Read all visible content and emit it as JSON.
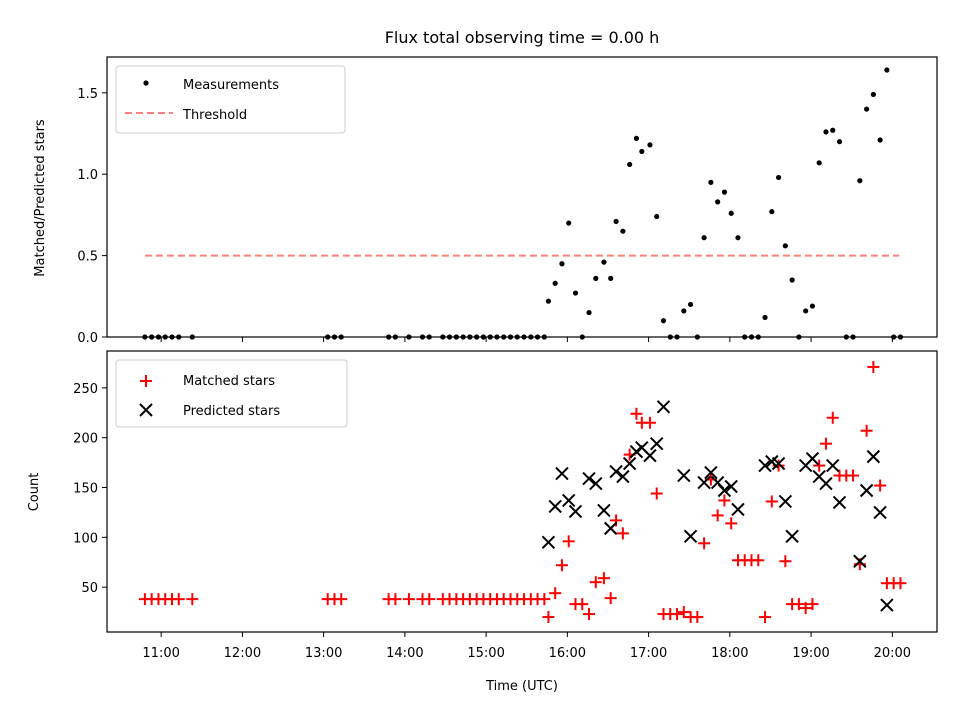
{
  "chart_data": [
    {
      "type": "scatter",
      "title": "Flux total observing time = 0.00 h",
      "xlabel": "",
      "ylabel": "Matched/Predicted stars",
      "ylim": [
        0,
        1.72
      ],
      "yticks": [
        "0.0",
        "0.5",
        "1.0",
        "1.5"
      ],
      "legend": {
        "position": "top-left",
        "entries": [
          "Measurements",
          "Threshold"
        ]
      },
      "threshold": {
        "name": "Threshold",
        "value": 0.5,
        "x_start": "10:48",
        "x_end": "20:05",
        "color": "#ff7f7f"
      },
      "series": [
        {
          "name": "Measurements",
          "color": "#000000",
          "marker": "dot",
          "points": [
            [
              "10:48",
              0
            ],
            [
              "10:53",
              0
            ],
            [
              "10:58",
              0
            ],
            [
              "11:03",
              0
            ],
            [
              "11:08",
              0
            ],
            [
              "11:13",
              0
            ],
            [
              "11:23",
              0
            ],
            [
              "13:03",
              0
            ],
            [
              "13:08",
              0
            ],
            [
              "13:13",
              0
            ],
            [
              "13:48",
              0
            ],
            [
              "13:53",
              0
            ],
            [
              "14:03",
              0
            ],
            [
              "14:13",
              0
            ],
            [
              "14:18",
              0
            ],
            [
              "14:28",
              0
            ],
            [
              "14:33",
              0
            ],
            [
              "14:38",
              0
            ],
            [
              "14:43",
              0
            ],
            [
              "14:48",
              0
            ],
            [
              "14:53",
              0
            ],
            [
              "14:58",
              0
            ],
            [
              "15:03",
              0
            ],
            [
              "15:08",
              0
            ],
            [
              "15:13",
              0
            ],
            [
              "15:18",
              0
            ],
            [
              "15:23",
              0
            ],
            [
              "15:28",
              0
            ],
            [
              "15:33",
              0
            ],
            [
              "15:38",
              0
            ],
            [
              "15:43",
              0
            ],
            [
              "15:46",
              0.22
            ],
            [
              "15:51",
              0.33
            ],
            [
              "15:56",
              0.45
            ],
            [
              "16:01",
              0.7
            ],
            [
              "16:06",
              0.27
            ],
            [
              "16:11",
              0.0
            ],
            [
              "16:16",
              0.15
            ],
            [
              "16:21",
              0.36
            ],
            [
              "16:27",
              0.46
            ],
            [
              "16:32",
              0.36
            ],
            [
              "16:36",
              0.71
            ],
            [
              "16:41",
              0.65
            ],
            [
              "16:46",
              1.06
            ],
            [
              "16:51",
              1.22
            ],
            [
              "16:55",
              1.14
            ],
            [
              "17:01",
              1.18
            ],
            [
              "17:06",
              0.74
            ],
            [
              "17:11",
              0.1
            ],
            [
              "17:16",
              0.0
            ],
            [
              "17:21",
              0.0
            ],
            [
              "17:26",
              0.16
            ],
            [
              "17:31",
              0.2
            ],
            [
              "17:36",
              0.0
            ],
            [
              "17:41",
              0.61
            ],
            [
              "17:46",
              0.95
            ],
            [
              "17:51",
              0.83
            ],
            [
              "17:56",
              0.89
            ],
            [
              "18:01",
              0.76
            ],
            [
              "18:06",
              0.61
            ],
            [
              "18:11",
              0.0
            ],
            [
              "18:16",
              0.0
            ],
            [
              "18:21",
              0.0
            ],
            [
              "18:26",
              0.12
            ],
            [
              "18:31",
              0.77
            ],
            [
              "18:36",
              0.98
            ],
            [
              "18:41",
              0.56
            ],
            [
              "18:46",
              0.35
            ],
            [
              "18:51",
              0.0
            ],
            [
              "18:56",
              0.16
            ],
            [
              "19:01",
              0.19
            ],
            [
              "19:06",
              1.07
            ],
            [
              "19:11",
              1.26
            ],
            [
              "19:16",
              1.27
            ],
            [
              "19:21",
              1.2
            ],
            [
              "19:26",
              0.0
            ],
            [
              "19:31",
              0.0
            ],
            [
              "19:36",
              0.96
            ],
            [
              "19:41",
              1.4
            ],
            [
              "19:46",
              1.49
            ],
            [
              "19:51",
              1.21
            ],
            [
              "19:56",
              1.64
            ],
            [
              "20:01",
              0.0
            ],
            [
              "20:06",
              0.0
            ]
          ]
        }
      ]
    },
    {
      "type": "scatter",
      "title": "",
      "xlabel": "Time (UTC)",
      "ylabel": "Count",
      "ylim": [
        5,
        287
      ],
      "yticks": [
        "50",
        "100",
        "150",
        "200",
        "250"
      ],
      "xticks": [
        "11:00",
        "12:00",
        "13:00",
        "14:00",
        "15:00",
        "16:00",
        "17:00",
        "18:00",
        "19:00",
        "20:00"
      ],
      "xlim": [
        "10:20",
        "20:33"
      ],
      "legend": {
        "position": "top-left",
        "entries": [
          "Matched stars",
          "Predicted stars"
        ]
      },
      "series": [
        {
          "name": "Matched stars",
          "color": "#ff0000",
          "marker": "plus",
          "points": [
            [
              "10:48",
              38
            ],
            [
              "10:53",
              38
            ],
            [
              "10:58",
              38
            ],
            [
              "11:03",
              38
            ],
            [
              "11:08",
              38
            ],
            [
              "11:13",
              38
            ],
            [
              "11:23",
              38
            ],
            [
              "13:03",
              38
            ],
            [
              "13:08",
              38
            ],
            [
              "13:13",
              38
            ],
            [
              "13:48",
              38
            ],
            [
              "13:53",
              38
            ],
            [
              "14:03",
              38
            ],
            [
              "14:13",
              38
            ],
            [
              "14:18",
              38
            ],
            [
              "14:28",
              38
            ],
            [
              "14:33",
              38
            ],
            [
              "14:38",
              38
            ],
            [
              "14:43",
              38
            ],
            [
              "14:48",
              38
            ],
            [
              "14:53",
              38
            ],
            [
              "14:58",
              38
            ],
            [
              "15:03",
              38
            ],
            [
              "15:08",
              38
            ],
            [
              "15:13",
              38
            ],
            [
              "15:18",
              38
            ],
            [
              "15:23",
              38
            ],
            [
              "15:28",
              38
            ],
            [
              "15:33",
              38
            ],
            [
              "15:38",
              38
            ],
            [
              "15:43",
              38
            ],
            [
              "15:46",
              20
            ],
            [
              "15:51",
              44
            ],
            [
              "15:56",
              72
            ],
            [
              "16:01",
              96
            ],
            [
              "16:06",
              33
            ],
            [
              "16:11",
              33
            ],
            [
              "16:16",
              23
            ],
            [
              "16:21",
              55
            ],
            [
              "16:27",
              59
            ],
            [
              "16:32",
              39
            ],
            [
              "16:36",
              117
            ],
            [
              "16:41",
              104
            ],
            [
              "16:46",
              183
            ],
            [
              "16:51",
              224
            ],
            [
              "16:55",
              215
            ],
            [
              "17:01",
              215
            ],
            [
              "17:06",
              144
            ],
            [
              "17:11",
              23
            ],
            [
              "17:16",
              23
            ],
            [
              "17:21",
              23
            ],
            [
              "17:26",
              25
            ],
            [
              "17:31",
              20
            ],
            [
              "17:36",
              20
            ],
            [
              "17:41",
              94
            ],
            [
              "17:46",
              158
            ],
            [
              "17:51",
              122
            ],
            [
              "17:56",
              137
            ],
            [
              "18:01",
              114
            ],
            [
              "18:06",
              77
            ],
            [
              "18:11",
              77
            ],
            [
              "18:16",
              77
            ],
            [
              "18:21",
              77
            ],
            [
              "18:26",
              20
            ],
            [
              "18:31",
              136
            ],
            [
              "18:36",
              172
            ],
            [
              "18:41",
              76
            ],
            [
              "18:46",
              33
            ],
            [
              "18:51",
              33
            ],
            [
              "18:56",
              29
            ],
            [
              "19:01",
              33
            ],
            [
              "19:06",
              172
            ],
            [
              "19:11",
              194
            ],
            [
              "19:16",
              220
            ],
            [
              "19:21",
              162
            ],
            [
              "19:26",
              162
            ],
            [
              "19:31",
              162
            ],
            [
              "19:36",
              73
            ],
            [
              "19:41",
              207
            ],
            [
              "19:46",
              271
            ],
            [
              "19:51",
              152
            ],
            [
              "19:56",
              54
            ],
            [
              "20:01",
              54
            ],
            [
              "20:06",
              54
            ]
          ]
        },
        {
          "name": "Predicted stars",
          "color": "#000000",
          "marker": "x",
          "points": [
            [
              "15:46",
              95
            ],
            [
              "15:51",
              131
            ],
            [
              "15:56",
              164
            ],
            [
              "16:01",
              137
            ],
            [
              "16:06",
              126
            ],
            [
              "16:16",
              159
            ],
            [
              "16:21",
              154
            ],
            [
              "16:27",
              127
            ],
            [
              "16:32",
              109
            ],
            [
              "16:36",
              166
            ],
            [
              "16:41",
              161
            ],
            [
              "16:46",
              174
            ],
            [
              "16:51",
              186
            ],
            [
              "16:55",
              190
            ],
            [
              "17:01",
              182
            ],
            [
              "17:06",
              194
            ],
            [
              "17:11",
              231
            ],
            [
              "17:26",
              162
            ],
            [
              "17:31",
              101
            ],
            [
              "17:41",
              155
            ],
            [
              "17:46",
              165
            ],
            [
              "17:51",
              155
            ],
            [
              "17:56",
              147
            ],
            [
              "18:01",
              151
            ],
            [
              "18:06",
              128
            ],
            [
              "18:26",
              172
            ],
            [
              "18:31",
              176
            ],
            [
              "18:36",
              174
            ],
            [
              "18:41",
              136
            ],
            [
              "18:46",
              101
            ],
            [
              "18:56",
              172
            ],
            [
              "19:01",
              179
            ],
            [
              "19:06",
              161
            ],
            [
              "19:11",
              154
            ],
            [
              "19:16",
              172
            ],
            [
              "19:21",
              135
            ],
            [
              "19:36",
              76
            ],
            [
              "19:41",
              147
            ],
            [
              "19:46",
              181
            ],
            [
              "19:51",
              125
            ],
            [
              "19:56",
              32
            ]
          ]
        }
      ]
    }
  ]
}
